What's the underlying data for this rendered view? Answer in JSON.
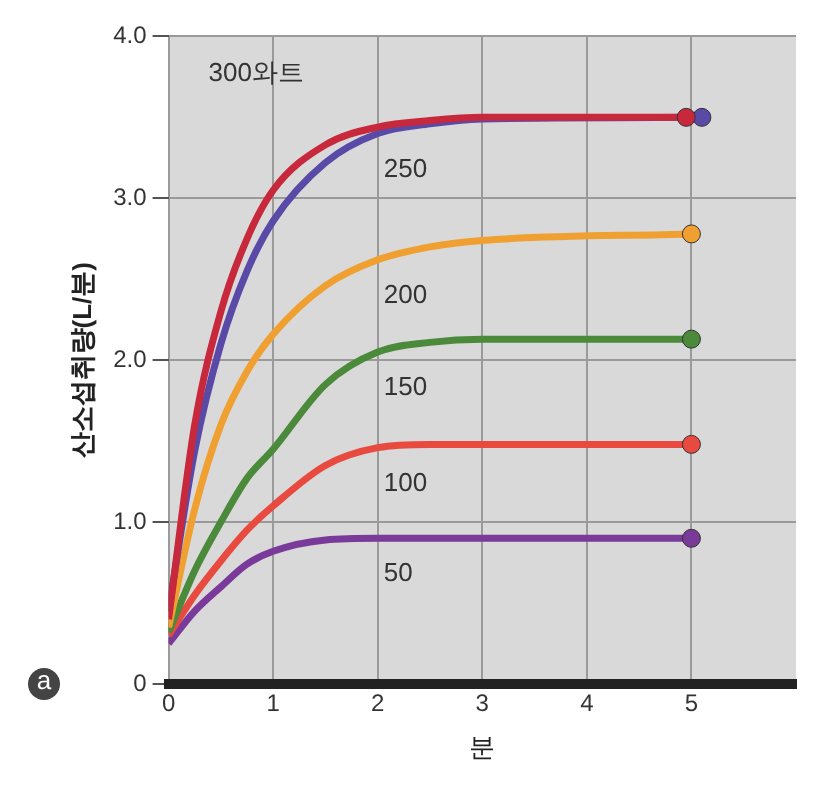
{
  "chart_data": {
    "type": "line",
    "xlabel": "분",
    "ylabel": "산소섭취량(L/분)",
    "annotations": [
      "a"
    ],
    "xlim": [
      0,
      6
    ],
    "xticks": [
      0,
      1,
      2,
      3,
      4,
      5
    ],
    "ylim": [
      0,
      4
    ],
    "yticks": [
      0,
      {
        "value": 1,
        "label": "1.0"
      },
      {
        "value": 2,
        "label": "2.0"
      },
      {
        "value": 3,
        "label": "3.0"
      },
      {
        "value": 4,
        "label": "4.0"
      }
    ],
    "grid": true,
    "legend": false,
    "line_style": "solid",
    "series": [
      {
        "name": "300와트",
        "color": "#c8283c",
        "x": [
          0,
          0.25,
          0.5,
          0.75,
          1,
          1.5,
          2,
          2.5,
          3,
          4.95
        ],
        "values": [
          0.4,
          1.6,
          2.3,
          2.75,
          3.05,
          3.33,
          3.44,
          3.48,
          3.5,
          3.5
        ]
      },
      {
        "name": "250",
        "color": "#5a4aa8",
        "x": [
          0,
          0.25,
          0.5,
          0.75,
          1,
          1.5,
          2,
          2.5,
          3,
          5.1
        ],
        "values": [
          0.45,
          1.44,
          2.1,
          2.55,
          2.86,
          3.22,
          3.4,
          3.46,
          3.49,
          3.5
        ]
      },
      {
        "name": "200",
        "color": "#f0a030",
        "x": [
          0,
          0.25,
          0.5,
          0.75,
          1,
          1.5,
          2,
          2.5,
          3,
          5
        ],
        "values": [
          0.35,
          1.08,
          1.6,
          1.93,
          2.16,
          2.46,
          2.62,
          2.7,
          2.74,
          2.78
        ]
      },
      {
        "name": "150",
        "color": "#4a8a3a",
        "x": [
          0,
          0.25,
          0.5,
          0.75,
          1,
          1.5,
          2,
          2.5,
          3,
          5
        ],
        "values": [
          0.32,
          0.7,
          1.0,
          1.27,
          1.45,
          1.85,
          2.05,
          2.11,
          2.13,
          2.13
        ]
      },
      {
        "name": "100",
        "color": "#e84a40",
        "x": [
          0,
          0.25,
          0.5,
          0.75,
          1,
          1.5,
          2,
          2.5,
          5
        ],
        "values": [
          0.3,
          0.55,
          0.76,
          0.95,
          1.1,
          1.35,
          1.46,
          1.48,
          1.48
        ]
      },
      {
        "name": "50",
        "color": "#7a3a9a",
        "x": [
          0,
          0.25,
          0.5,
          0.75,
          1,
          1.5,
          2,
          5
        ],
        "values": [
          0.25,
          0.45,
          0.6,
          0.74,
          0.82,
          0.89,
          0.9,
          0.9
        ]
      }
    ]
  }
}
